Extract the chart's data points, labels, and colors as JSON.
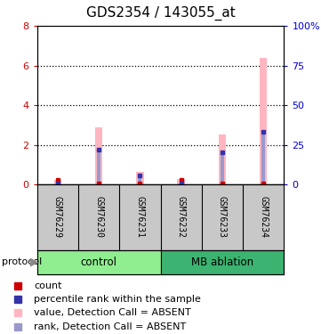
{
  "title": "GDS2354 / 143055_at",
  "samples": [
    "GSM76229",
    "GSM76230",
    "GSM76231",
    "GSM76232",
    "GSM76233",
    "GSM76234"
  ],
  "bar_pink_values": [
    0.25,
    2.9,
    0.65,
    0.3,
    2.55,
    6.4
  ],
  "bar_blue_values": [
    0.05,
    1.75,
    0.45,
    0.08,
    1.65,
    2.65
  ],
  "red_dot_values": [
    0.25,
    0.05,
    0.05,
    0.25,
    0.05,
    0.05
  ],
  "blue_dot_values": [
    0.05,
    1.75,
    0.45,
    0.08,
    1.65,
    2.65
  ],
  "ylim_left": [
    0,
    8
  ],
  "ylim_right": [
    0,
    100
  ],
  "yticks_left": [
    0,
    2,
    4,
    6,
    8
  ],
  "yticks_right": [
    0,
    25,
    50,
    75,
    100
  ],
  "ytick_labels_right": [
    "0",
    "25",
    "50",
    "75",
    "100%"
  ],
  "left_axis_color": "#CC0000",
  "right_axis_color": "#0000CC",
  "bar_pink_color": "#FFB6C1",
  "bar_blue_color": "#9999CC",
  "dot_red_color": "#CC0000",
  "dot_blue_color": "#3333AA",
  "bg_sample_row": "#C8C8C8",
  "group_control_color": "#90EE90",
  "group_mb_color": "#3CB371",
  "legend_items": [
    {
      "color": "#CC0000",
      "label": "count",
      "marker": "s"
    },
    {
      "color": "#3333AA",
      "label": "percentile rank within the sample",
      "marker": "s"
    },
    {
      "color": "#FFB6C1",
      "label": "value, Detection Call = ABSENT",
      "marker": "s"
    },
    {
      "color": "#9999CC",
      "label": "rank, Detection Call = ABSENT",
      "marker": "s"
    }
  ],
  "sample_fontsize": 7,
  "title_fontsize": 11,
  "legend_fontsize": 8,
  "bar_width": 0.18
}
